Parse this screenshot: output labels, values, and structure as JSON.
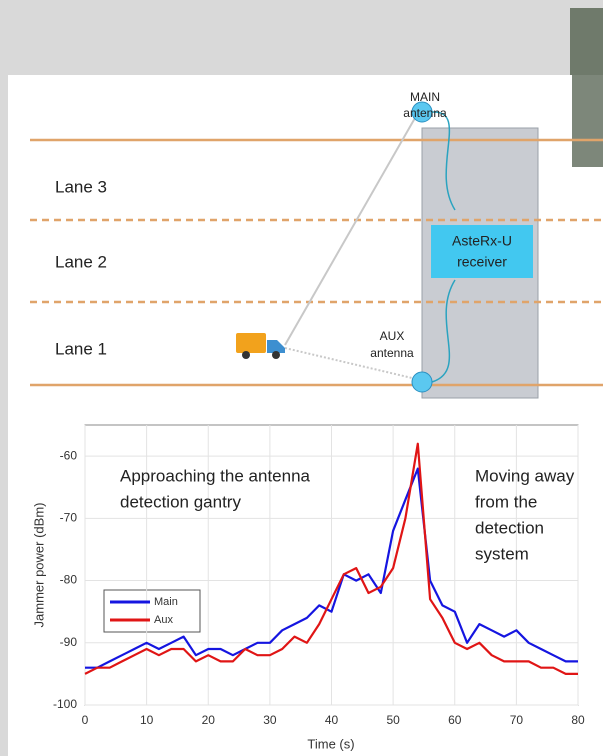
{
  "diagram": {
    "lanes": [
      "Lane 3",
      "Lane 2",
      "Lane 1"
    ],
    "main_antenna": [
      "MAIN",
      "antenna"
    ],
    "aux_antenna": [
      "AUX",
      "antenna"
    ],
    "receiver": [
      "AsteRx-U",
      "receiver"
    ]
  },
  "chart_data": {
    "type": "line",
    "ylabel": "Jammer power (dBm)",
    "xlabel": "Time (s)",
    "annotations": [
      [
        "Approaching the antenna",
        "detection gantry"
      ],
      [
        "Moving away",
        "from the",
        "detection",
        "system"
      ]
    ],
    "x": [
      0,
      2,
      4,
      6,
      8,
      10,
      12,
      14,
      16,
      18,
      20,
      22,
      24,
      26,
      28,
      30,
      32,
      34,
      36,
      38,
      40,
      42,
      44,
      46,
      48,
      50,
      52,
      54,
      56,
      58,
      60,
      62,
      64,
      66,
      68,
      70,
      72,
      74,
      76,
      78,
      80
    ],
    "series": [
      {
        "name": "Main",
        "color": "#1515e0",
        "values": [
          -94,
          -94,
          -93,
          -92,
          -91,
          -90,
          -91,
          -90,
          -89,
          -92,
          -91,
          -91,
          -92,
          -91,
          -90,
          -90,
          -88,
          -87,
          -86,
          -84,
          -85,
          -79,
          -80,
          -79,
          -82,
          -72,
          -67,
          -62,
          -80,
          -84,
          -85,
          -90,
          -87,
          -88,
          -89,
          -88,
          -90,
          -91,
          -92,
          -93,
          -93
        ]
      },
      {
        "name": "Aux",
        "color": "#e01515",
        "values": [
          -95,
          -94,
          -94,
          -93,
          -92,
          -91,
          -92,
          -91,
          -91,
          -93,
          -92,
          -93,
          -93,
          -91,
          -92,
          -92,
          -91,
          -89,
          -90,
          -87,
          -83,
          -79,
          -78,
          -82,
          -81,
          -78,
          -70,
          -58,
          -83,
          -86,
          -90,
          -91,
          -90,
          -92,
          -93,
          -93,
          -93,
          -94,
          -94,
          -95,
          -95
        ]
      }
    ],
    "xlim": [
      0,
      80
    ],
    "ylim": [
      -100,
      -55
    ],
    "xticks": [
      0,
      10,
      20,
      30,
      40,
      50,
      60,
      70,
      80
    ],
    "yticks": [
      -100,
      -90,
      -80,
      -70,
      -60
    ],
    "grid": true
  }
}
